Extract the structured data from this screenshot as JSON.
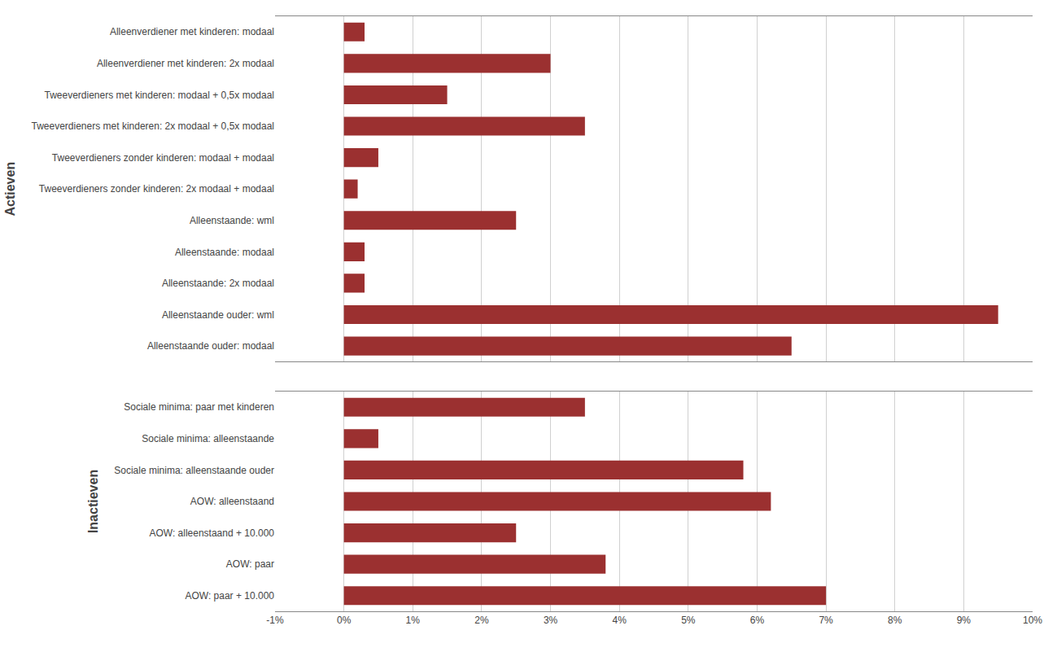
{
  "chart_data": [
    {
      "type": "bar",
      "orientation": "horizontal",
      "ylabel": "Actieven",
      "categories": [
        "Alleenverdiener met kinderen: modaal",
        "Alleenverdiener met kinderen: 2x modaal",
        "Tweeverdieners met kinderen: modaal + 0,5x modaal",
        "Tweeverdieners met kinderen: 2x modaal + 0,5x modaal",
        "Tweeverdieners zonder kinderen: modaal + modaal",
        "Tweeverdieners zonder kinderen: 2x modaal + modaal",
        "Alleenstaande: wml",
        "Alleenstaande: modaal",
        "Alleenstaande: 2x modaal",
        "Alleenstaande ouder: wml",
        "Alleenstaande ouder: modaal"
      ],
      "values": [
        0.3,
        3.0,
        1.5,
        3.5,
        0.5,
        0.2,
        2.5,
        0.3,
        0.3,
        9.5,
        6.5
      ],
      "color": "#9B3030",
      "xlim": [
        -1,
        10
      ],
      "xticks": [
        {
          "value": -1,
          "label": "-1%"
        },
        {
          "value": 0,
          "label": "0%"
        },
        {
          "value": 1,
          "label": "1%"
        },
        {
          "value": 2,
          "label": "2%"
        },
        {
          "value": 3,
          "label": "3%"
        },
        {
          "value": 4,
          "label": "4%"
        },
        {
          "value": 5,
          "label": "5%"
        },
        {
          "value": 6,
          "label": "6%"
        },
        {
          "value": 7,
          "label": "7%"
        },
        {
          "value": 8,
          "label": "8%"
        },
        {
          "value": 9,
          "label": "9%"
        },
        {
          "value": 10,
          "label": "10%"
        }
      ],
      "grid": true,
      "tick_labels": "y"
    },
    {
      "type": "bar",
      "orientation": "horizontal",
      "ylabel": "Inactieven",
      "categories": [
        "Sociale minima: paar met kinderen",
        "Sociale minima: alleenstaande",
        "Sociale minima: alleenstaande ouder",
        "AOW: alleenstaand",
        "AOW: alleenstaand + 10.000",
        "AOW: paar",
        "AOW: paar + 10.000"
      ],
      "values": [
        3.5,
        0.5,
        5.8,
        6.2,
        2.5,
        3.8,
        7.0
      ],
      "color": "#9B3030",
      "xlim": [
        -1,
        10
      ],
      "xticks": [
        {
          "value": -1,
          "label": "-1%"
        },
        {
          "value": 0,
          "label": "0%"
        },
        {
          "value": 1,
          "label": "1%"
        },
        {
          "value": 2,
          "label": "2%"
        },
        {
          "value": 3,
          "label": "3%"
        },
        {
          "value": 4,
          "label": "4%"
        },
        {
          "value": 5,
          "label": "5%"
        },
        {
          "value": 6,
          "label": "6%"
        },
        {
          "value": 7,
          "label": "7%"
        },
        {
          "value": 8,
          "label": "8%"
        },
        {
          "value": 9,
          "label": "9%"
        },
        {
          "value": 10,
          "label": "10%"
        }
      ],
      "grid": true
    }
  ]
}
